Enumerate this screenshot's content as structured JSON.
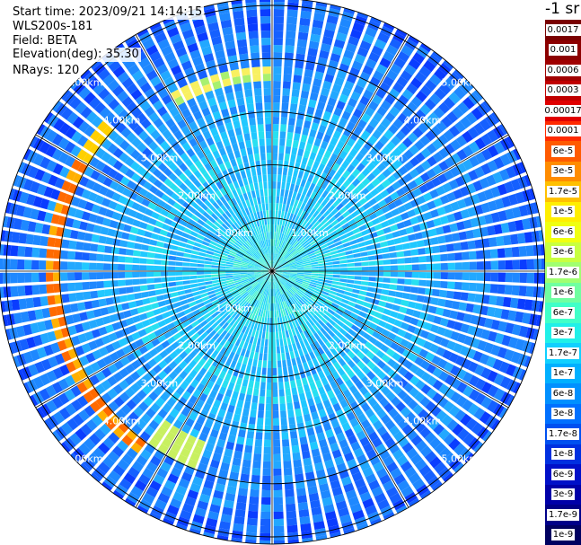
{
  "info": {
    "start_time": "Start time: 2023/09/21 14:14:15",
    "instrument": "WLS200s-181",
    "field": "Field: BETA",
    "elevation": "Elevation(deg): 35.30",
    "nrays": "NRays: 120"
  },
  "ppi": {
    "n_rays": 120,
    "range_rings": [
      {
        "label": "1.00km"
      },
      {
        "label": "2.00km"
      },
      {
        "label": "3.00km"
      },
      {
        "label": "4.00km"
      },
      {
        "label": "5.00km"
      }
    ]
  },
  "colorbar": {
    "unit_title": "-1 sr",
    "levels": [
      {
        "label": "0.0017",
        "color": "#7a0000"
      },
      {
        "label": "0.001",
        "color": "#8c0000"
      },
      {
        "label": "0.0006",
        "color": "#a00000"
      },
      {
        "label": "0.0003",
        "color": "#c00000"
      },
      {
        "label": "0.00017",
        "color": "#e00000"
      },
      {
        "label": "0.0001",
        "color": "#ff2a00"
      },
      {
        "label": "6e-5",
        "color": "#ff5a00"
      },
      {
        "label": "3e-5",
        "color": "#ff8c00"
      },
      {
        "label": "1.7e-5",
        "color": "#ffc000"
      },
      {
        "label": "1e-5",
        "color": "#ffee00"
      },
      {
        "label": "6e-6",
        "color": "#f0ff10"
      },
      {
        "label": "3e-6",
        "color": "#c8ff40"
      },
      {
        "label": "1.7e-6",
        "color": "#a0ff70"
      },
      {
        "label": "1e-6",
        "color": "#70ffa0"
      },
      {
        "label": "6e-7",
        "color": "#40ffc8"
      },
      {
        "label": "3e-7",
        "color": "#20f0e8"
      },
      {
        "label": "1.7e-7",
        "color": "#10d0ff"
      },
      {
        "label": "1e-7",
        "color": "#00b0ff"
      },
      {
        "label": "6e-8",
        "color": "#0090ff"
      },
      {
        "label": "3e-8",
        "color": "#0070ff"
      },
      {
        "label": "1.7e-8",
        "color": "#0050f0"
      },
      {
        "label": "1e-8",
        "color": "#0030e0"
      },
      {
        "label": "6e-9",
        "color": "#0010c8"
      },
      {
        "label": "3e-9",
        "color": "#0000a8"
      },
      {
        "label": "1.7e-9",
        "color": "#000088"
      },
      {
        "label": "1e-9",
        "color": "#000060"
      }
    ]
  }
}
